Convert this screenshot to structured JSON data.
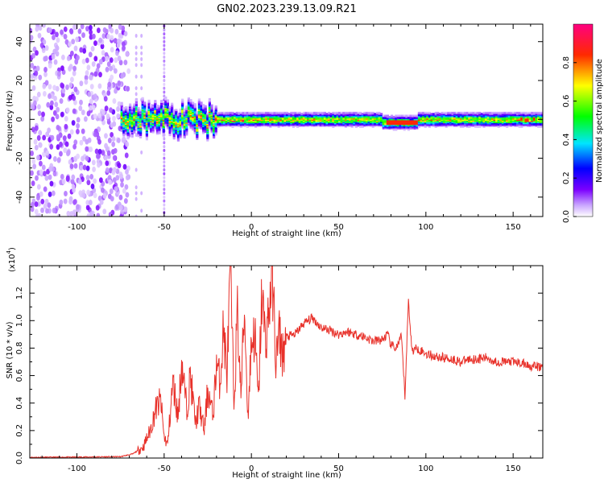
{
  "title": "GN02.2023.239.13.09.R21",
  "chart_data": [
    {
      "type": "heatmap",
      "xlabel": "Height of straight line (km)",
      "ylabel": "Frequency (Hz)",
      "xlim": [
        -127,
        167
      ],
      "ylim": [
        -50,
        49
      ],
      "xticks": [
        -100,
        -50,
        0,
        50,
        100,
        150
      ],
      "yticks": [
        -40,
        -20,
        0,
        20,
        40
      ],
      "colorbar": {
        "label": "Normalized spectral amplitude",
        "range": [
          0,
          1
        ],
        "ticks": [
          0.0,
          0.2,
          0.4,
          0.6,
          0.8
        ],
        "tick_labels": [
          "0.0",
          "0.2",
          "0.4",
          "0.6",
          "0.8"
        ],
        "colormap": [
          "#ffffff",
          "#9f00ff",
          "#0000ff",
          "#00e5ff",
          "#00ff00",
          "#ffff00",
          "#ff0000",
          "#ff0080"
        ]
      },
      "features": [
        {
          "name": "noise band",
          "x_range": [
            -127,
            -75
          ],
          "freq_range": [
            -50,
            49
          ],
          "amplitude": 0.1
        },
        {
          "name": "spike",
          "x": -50,
          "freq_range": [
            -50,
            49
          ],
          "amplitude": 0.1
        },
        {
          "name": "main ridge",
          "x_range": [
            -75,
            167
          ],
          "freq_center": 0,
          "amplitude_peak": 0.85
        }
      ]
    },
    {
      "type": "line",
      "xlabel": "Height of straight line (km)",
      "ylabel": "SNR (10 * v/v)",
      "scale_label": "(x10",
      "scale_exponent": "4",
      "xlim": [
        -127,
        167
      ],
      "ylim": [
        0,
        1.4
      ],
      "xticks": [
        -100,
        -50,
        0,
        50,
        100,
        150
      ],
      "yticks": [
        0.0,
        0.2,
        0.4,
        0.6,
        0.8,
        1.0,
        1.2
      ],
      "ytick_labels": [
        "0.0",
        "0.2",
        "0.4",
        "0.6",
        "0.8",
        "1.0",
        "1.2"
      ],
      "line_color": "#e8312a",
      "series": [
        {
          "x": [
            -127,
            -110,
            -90,
            -75,
            -68,
            -62,
            -58,
            -55,
            -52,
            -50,
            -48,
            -45,
            -42,
            -40,
            -37,
            -35,
            -32,
            -30,
            -27,
            -25,
            -22,
            -20,
            -18,
            -16,
            -14,
            -12,
            -10,
            -8,
            -6,
            -4,
            -2,
            0,
            2,
            4,
            6,
            8,
            10,
            12,
            14,
            16,
            18,
            20,
            25,
            30,
            35,
            40,
            45,
            50,
            55,
            60,
            65,
            70,
            75,
            78,
            80,
            83,
            86,
            88,
            90,
            92,
            95,
            100,
            105,
            110,
            115,
            120,
            125,
            130,
            135,
            140,
            145,
            150,
            155,
            160,
            167
          ],
          "y": [
            0.005,
            0.006,
            0.008,
            0.01,
            0.03,
            0.08,
            0.2,
            0.35,
            0.42,
            0.15,
            0.1,
            0.55,
            0.3,
            0.7,
            0.35,
            0.6,
            0.25,
            0.38,
            0.2,
            0.5,
            0.3,
            0.7,
            0.55,
            0.95,
            0.6,
            1.38,
            0.4,
            1.05,
            0.45,
            1.1,
            0.3,
            0.85,
            0.9,
            0.4,
            1.2,
            0.85,
            1.05,
            1.38,
            0.7,
            0.9,
            0.75,
            0.88,
            0.9,
            0.98,
            1.02,
            0.95,
            0.93,
            0.9,
            0.92,
            0.9,
            0.88,
            0.85,
            0.86,
            0.9,
            0.82,
            0.8,
            0.88,
            0.45,
            1.15,
            0.78,
            0.8,
            0.76,
            0.74,
            0.73,
            0.72,
            0.7,
            0.72,
            0.72,
            0.73,
            0.7,
            0.7,
            0.7,
            0.69,
            0.67,
            0.66
          ]
        }
      ]
    }
  ]
}
